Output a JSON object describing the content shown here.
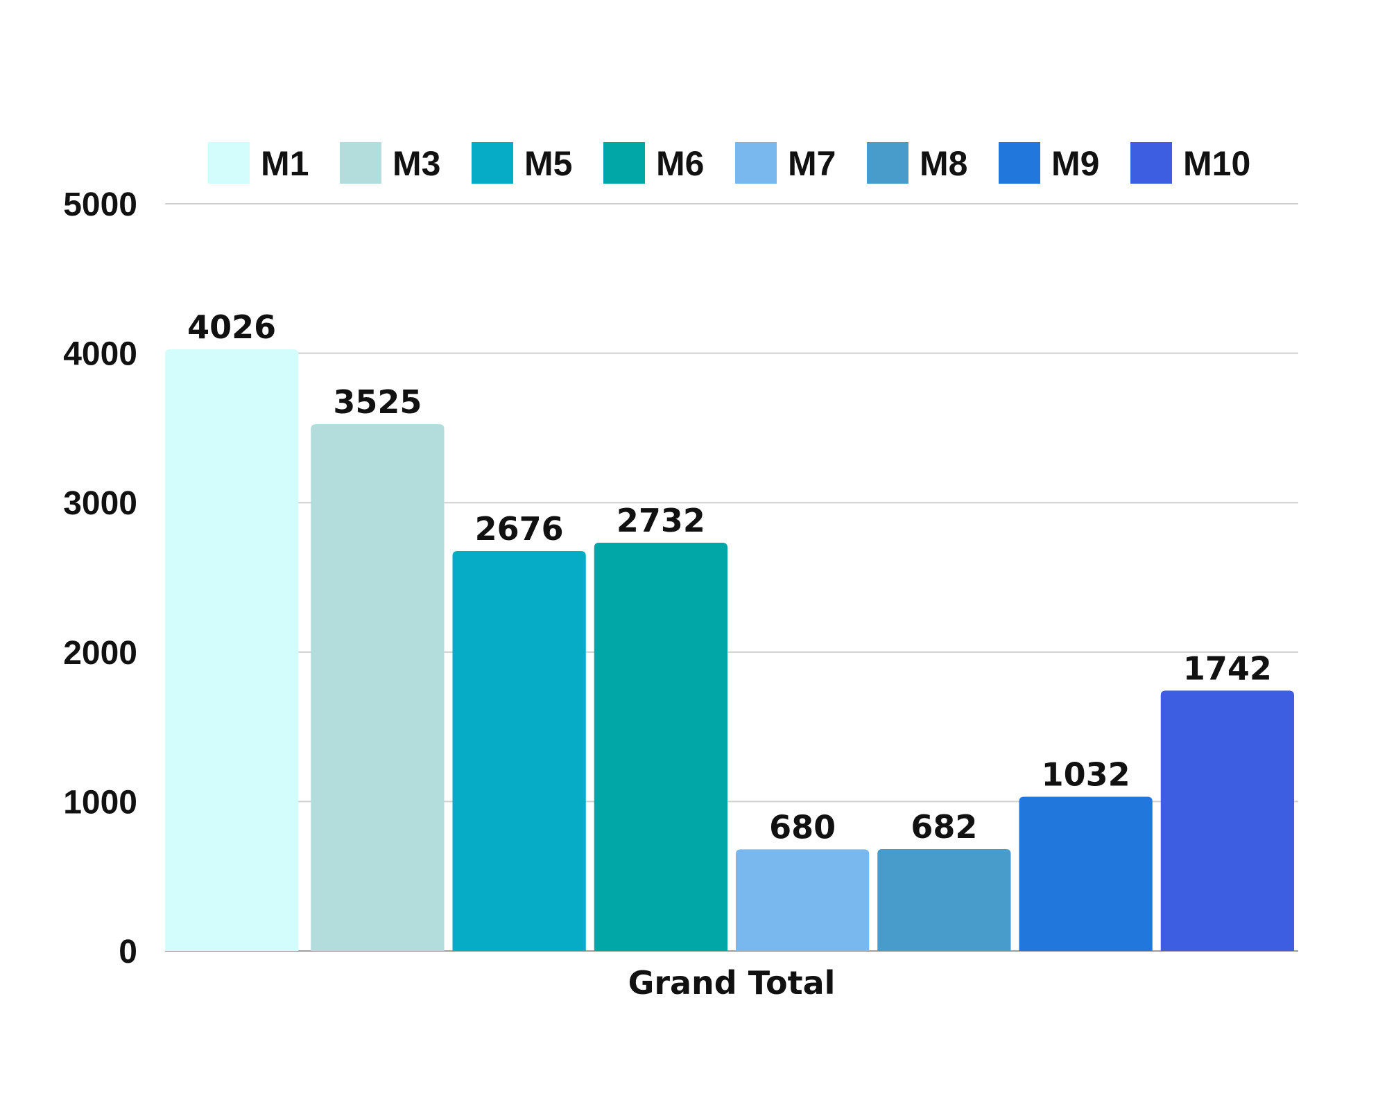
{
  "chart_data": {
    "type": "bar",
    "title": "",
    "xlabel": "",
    "ylabel": "",
    "categories": [
      "Grand Total"
    ],
    "series": [
      {
        "name": "M1",
        "values": [
          4026
        ],
        "color": "#d3fcfc"
      },
      {
        "name": "M3",
        "values": [
          3525
        ],
        "color": "#b3dcdc"
      },
      {
        "name": "M5",
        "values": [
          2676
        ],
        "color": "#06abc5"
      },
      {
        "name": "M6",
        "values": [
          2732
        ],
        "color": "#00a7a6"
      },
      {
        "name": "M7",
        "values": [
          680
        ],
        "color": "#78b8ee"
      },
      {
        "name": "M8",
        "values": [
          682
        ],
        "color": "#489ccc"
      },
      {
        "name": "M9",
        "values": [
          1032
        ],
        "color": "#2277dd"
      },
      {
        "name": "M10",
        "values": [
          1742
        ],
        "color": "#3d5ee0"
      }
    ],
    "ylim": [
      0,
      5000
    ],
    "yticks": [
      0,
      1000,
      2000,
      3000,
      4000,
      5000
    ],
    "grid": true,
    "legend": "top",
    "data_labels": true
  }
}
